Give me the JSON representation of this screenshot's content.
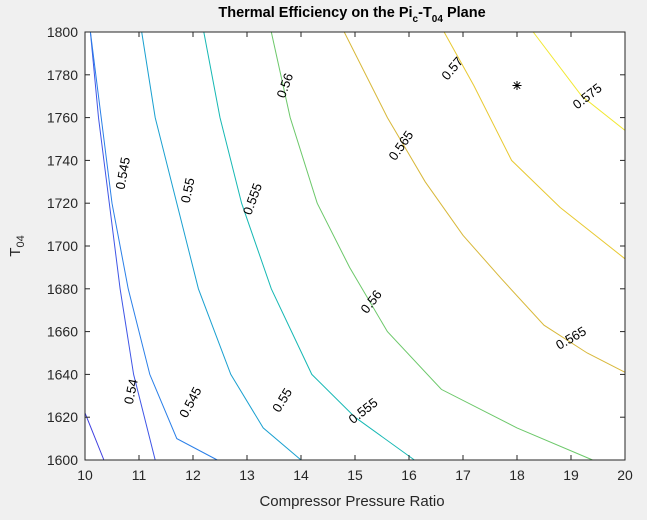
{
  "chart_data": {
    "type": "contour",
    "title": "Thermal Efficiency on the Pi",
    "title_sub": "c",
    "title_mid": "-T",
    "title_sub2": "04",
    "title_end": " Plane",
    "xlabel": "Compressor Pressure Ratio",
    "ylabel": "T",
    "ylabel_sub": "04",
    "xlim": [
      10,
      20
    ],
    "ylim": [
      1600,
      1800
    ],
    "x_ticks": [
      "10",
      "11",
      "12",
      "13",
      "14",
      "15",
      "16",
      "17",
      "18",
      "19",
      "20"
    ],
    "y_ticks": [
      "1600",
      "1620",
      "1640",
      "1660",
      "1680",
      "1700",
      "1720",
      "1740",
      "1760",
      "1780",
      "1800"
    ],
    "grid": false,
    "colormap": "parula",
    "levels": [
      {
        "level": 0.535,
        "color": "#3e3ee0",
        "points": [
          [
            10,
            1622
          ],
          [
            10.35,
            1600
          ]
        ],
        "labels": []
      },
      {
        "level": 0.54,
        "color": "#3f55e6",
        "points": [
          [
            10.1,
            1800
          ],
          [
            10.25,
            1760
          ],
          [
            10.45,
            1720
          ],
          [
            10.65,
            1680
          ],
          [
            10.9,
            1640
          ],
          [
            11.3,
            1600
          ]
        ],
        "labels": [
          {
            "text": "0.54",
            "x": 10.85,
            "y": 1632,
            "angle": -78
          }
        ]
      },
      {
        "level": 0.545,
        "color": "#2a7fe8",
        "points": [
          [
            10.1,
            1800
          ],
          [
            10.3,
            1760
          ],
          [
            10.5,
            1720
          ],
          [
            10.8,
            1680
          ],
          [
            11.2,
            1640
          ],
          [
            11.7,
            1610
          ],
          [
            12.45,
            1600
          ]
        ],
        "labels": [
          {
            "text": "0.545",
            "x": 10.7,
            "y": 1734,
            "angle": -80
          },
          {
            "text": "0.545",
            "x": 11.95,
            "y": 1627,
            "angle": -62
          }
        ]
      },
      {
        "level": 0.55,
        "color": "#1aa0d0",
        "points": [
          [
            11.05,
            1800
          ],
          [
            11.3,
            1760
          ],
          [
            11.7,
            1720
          ],
          [
            12.1,
            1680
          ],
          [
            12.7,
            1640
          ],
          [
            13.3,
            1615
          ],
          [
            14.0,
            1600
          ]
        ],
        "labels": [
          {
            "text": "0.55",
            "x": 11.9,
            "y": 1726,
            "angle": -78
          },
          {
            "text": "0.55",
            "x": 13.65,
            "y": 1628,
            "angle": -58
          }
        ]
      },
      {
        "level": 0.555,
        "color": "#16b8b4",
        "points": [
          [
            12.2,
            1800
          ],
          [
            12.5,
            1760
          ],
          [
            12.9,
            1720
          ],
          [
            13.45,
            1680
          ],
          [
            14.2,
            1640
          ],
          [
            15.0,
            1620
          ],
          [
            16.1,
            1600
          ]
        ],
        "labels": [
          {
            "text": "0.555",
            "x": 13.1,
            "y": 1722,
            "angle": -70
          },
          {
            "text": "0.555",
            "x": 15.15,
            "y": 1623,
            "angle": -38
          }
        ]
      },
      {
        "level": 0.56,
        "color": "#6cc86a",
        "points": [
          [
            13.45,
            1800
          ],
          [
            13.8,
            1760
          ],
          [
            14.3,
            1720
          ],
          [
            14.9,
            1690
          ],
          [
            15.6,
            1660
          ],
          [
            16.6,
            1633
          ],
          [
            18.0,
            1615
          ],
          [
            19.4,
            1600
          ]
        ],
        "labels": [
          {
            "text": "0.56",
            "x": 13.7,
            "y": 1775,
            "angle": -70
          },
          {
            "text": "0.56",
            "x": 15.3,
            "y": 1674,
            "angle": -52
          }
        ]
      },
      {
        "level": 0.565,
        "color": "#d8b83a",
        "points": [
          [
            14.8,
            1800
          ],
          [
            15.6,
            1760
          ],
          [
            16.3,
            1730
          ],
          [
            17.0,
            1705
          ],
          [
            17.7,
            1685
          ],
          [
            18.5,
            1663
          ],
          [
            19.3,
            1650
          ],
          [
            20,
            1641
          ]
        ],
        "labels": [
          {
            "text": "0.565",
            "x": 15.85,
            "y": 1747,
            "angle": -55
          },
          {
            "text": "0.565",
            "x": 19.0,
            "y": 1657,
            "angle": -30
          }
        ]
      },
      {
        "level": 0.57,
        "color": "#e8c932",
        "points": [
          [
            16.65,
            1800
          ],
          [
            17.2,
            1775
          ],
          [
            17.9,
            1740
          ],
          [
            18.8,
            1718
          ],
          [
            20,
            1694
          ]
        ],
        "labels": [
          {
            "text": "0.57",
            "x": 16.8,
            "y": 1783,
            "angle": -50
          }
        ]
      },
      {
        "level": 0.575,
        "color": "#f2e830",
        "points": [
          [
            18.3,
            1800
          ],
          [
            19.2,
            1770
          ],
          [
            20,
            1754
          ]
        ],
        "labels": [
          {
            "text": "0.575",
            "x": 19.3,
            "y": 1770,
            "angle": -38
          }
        ]
      }
    ],
    "marker": {
      "x": 18,
      "y": 1775,
      "symbol": "*"
    }
  }
}
